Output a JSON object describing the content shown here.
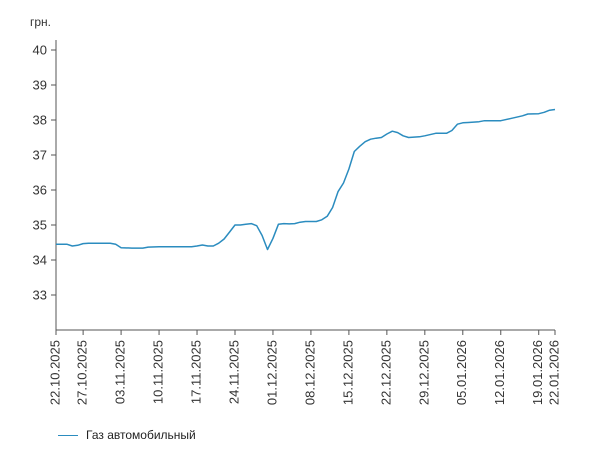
{
  "chart_data": {
    "type": "line",
    "title": "",
    "xlabel": "",
    "ylabel": "грн.",
    "ylim": [
      32,
      40
    ],
    "yticks": [
      33,
      34,
      35,
      36,
      37,
      38,
      39,
      40
    ],
    "x_start": "22.10.2025",
    "x_end": "22.01.2026",
    "xtick_labels": [
      "22.10.2025",
      "27.10.2025",
      "03.11.2025",
      "10.11.2025",
      "17.11.2025",
      "24.11.2025",
      "01.12.2025",
      "08.12.2025",
      "15.12.2025",
      "22.12.2025",
      "29.12.2025",
      "05.01.2026",
      "12.01.2026",
      "19.01.2026",
      "22.01.2026"
    ],
    "color": "#2b8cbf",
    "grid": false,
    "legend_position": "bottom-left",
    "series": [
      {
        "name": "Газ автомобильный",
        "points": [
          [
            "22.10.2025",
            34.45
          ],
          [
            "24.10.2025",
            34.45
          ],
          [
            "25.10.2025",
            34.4
          ],
          [
            "26.10.2025",
            34.42
          ],
          [
            "27.10.2025",
            34.47
          ],
          [
            "28.10.2025",
            34.48
          ],
          [
            "01.11.2025",
            34.48
          ],
          [
            "02.11.2025",
            34.45
          ],
          [
            "03.11.2025",
            34.35
          ],
          [
            "05.11.2025",
            34.34
          ],
          [
            "07.11.2025",
            34.34
          ],
          [
            "08.11.2025",
            34.37
          ],
          [
            "10.11.2025",
            34.38
          ],
          [
            "12.11.2025",
            34.38
          ],
          [
            "14.11.2025",
            34.38
          ],
          [
            "16.11.2025",
            34.38
          ],
          [
            "17.11.2025",
            34.4
          ],
          [
            "18.11.2025",
            34.43
          ],
          [
            "19.11.2025",
            34.4
          ],
          [
            "20.11.2025",
            34.4
          ],
          [
            "21.11.2025",
            34.48
          ],
          [
            "22.11.2025",
            34.6
          ],
          [
            "23.11.2025",
            34.8
          ],
          [
            "24.11.2025",
            35.0
          ],
          [
            "25.11.2025",
            35.0
          ],
          [
            "26.11.2025",
            35.02
          ],
          [
            "27.11.2025",
            35.04
          ],
          [
            "28.11.2025",
            34.98
          ],
          [
            "29.11.2025",
            34.7
          ],
          [
            "30.11.2025",
            34.3
          ],
          [
            "01.12.2025",
            34.62
          ],
          [
            "02.12.2025",
            35.02
          ],
          [
            "03.12.2025",
            35.04
          ],
          [
            "04.12.2025",
            35.03
          ],
          [
            "05.12.2025",
            35.04
          ],
          [
            "06.12.2025",
            35.08
          ],
          [
            "07.12.2025",
            35.1
          ],
          [
            "08.12.2025",
            35.1
          ],
          [
            "09.12.2025",
            35.1
          ],
          [
            "10.12.2025",
            35.15
          ],
          [
            "11.12.2025",
            35.25
          ],
          [
            "12.12.2025",
            35.5
          ],
          [
            "13.12.2025",
            35.95
          ],
          [
            "14.12.2025",
            36.2
          ],
          [
            "15.12.2025",
            36.6
          ],
          [
            "16.12.2025",
            37.1
          ],
          [
            "17.12.2025",
            37.25
          ],
          [
            "18.12.2025",
            37.38
          ],
          [
            "19.12.2025",
            37.45
          ],
          [
            "20.12.2025",
            37.48
          ],
          [
            "21.12.2025",
            37.5
          ],
          [
            "22.12.2025",
            37.6
          ],
          [
            "23.12.2025",
            37.68
          ],
          [
            "24.12.2025",
            37.64
          ],
          [
            "25.12.2025",
            37.55
          ],
          [
            "26.12.2025",
            37.5
          ],
          [
            "28.12.2025",
            37.52
          ],
          [
            "29.12.2025",
            37.55
          ],
          [
            "31.12.2025",
            37.62
          ],
          [
            "02.01.2026",
            37.62
          ],
          [
            "03.01.2026",
            37.7
          ],
          [
            "04.01.2026",
            37.88
          ],
          [
            "05.01.2026",
            37.92
          ],
          [
            "06.01.2026",
            37.93
          ],
          [
            "08.01.2026",
            37.95
          ],
          [
            "09.01.2026",
            37.98
          ],
          [
            "12.01.2026",
            37.98
          ],
          [
            "14.01.2026",
            38.05
          ],
          [
            "16.01.2026",
            38.12
          ],
          [
            "17.01.2026",
            38.17
          ],
          [
            "19.01.2026",
            38.18
          ],
          [
            "20.01.2026",
            38.22
          ],
          [
            "21.01.2026",
            38.28
          ],
          [
            "22.01.2026",
            38.3
          ]
        ]
      }
    ]
  }
}
